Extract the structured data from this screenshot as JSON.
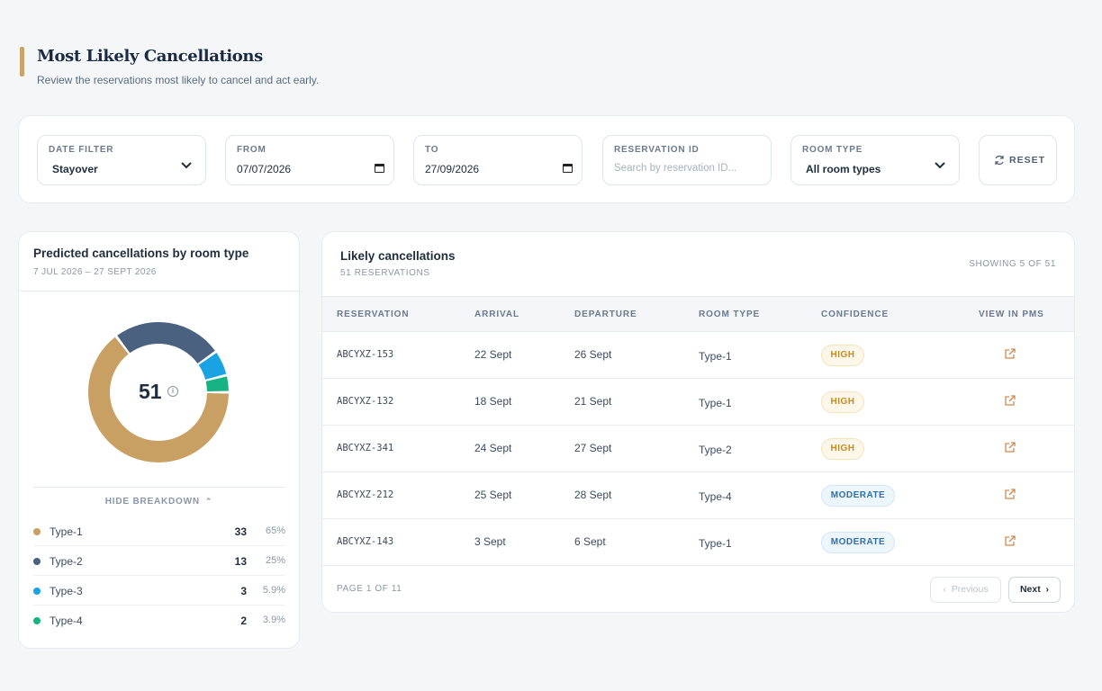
{
  "header": {
    "title": "Most Likely Cancellations",
    "subtitle": "Review the reservations most likely to cancel and act early.",
    "accent_color": "#c9a36a"
  },
  "filters": {
    "date_filter": {
      "label": "DATE FILTER",
      "value": "Stayover"
    },
    "from": {
      "label": "FROM",
      "value": "07/07/2026"
    },
    "to": {
      "label": "TO",
      "value": "27/09/2026"
    },
    "reservation_id": {
      "label": "RESERVATION ID",
      "placeholder": "Search by reservation ID..."
    },
    "room_type": {
      "label": "ROOM TYPE",
      "value": "All room types"
    },
    "reset_label": "RESET"
  },
  "breakdown": {
    "title": "Predicted cancellations by room type",
    "date_range": "7 JUL 2026 – 27 SEPT 2026",
    "total": "51",
    "toggle_label": "HIDE BREAKDOWN",
    "items": [
      {
        "name": "Type-1",
        "count": "33",
        "pct": "65%",
        "value": 33,
        "color": "#c9a063"
      },
      {
        "name": "Type-2",
        "count": "13",
        "pct": "25%",
        "value": 13,
        "color": "#4a6280"
      },
      {
        "name": "Type-3",
        "count": "3",
        "pct": "5.9%",
        "value": 3,
        "color": "#1aa3e3"
      },
      {
        "name": "Type-4",
        "count": "2",
        "pct": "3.9%",
        "value": 2,
        "color": "#17b383"
      }
    ]
  },
  "table": {
    "title": "Likely cancellations",
    "subtitle": "51 RESERVATIONS",
    "showing": "SHOWING 5 OF 51",
    "columns": [
      "RESERVATION",
      "ARRIVAL",
      "DEPARTURE",
      "ROOM TYPE",
      "CONFIDENCE",
      "VIEW IN PMS"
    ],
    "rows": [
      {
        "reservation": "ABCYXZ-153",
        "arrival": "22 Sept",
        "departure": "26 Sept",
        "room_type": "Type-1",
        "confidence": "HIGH"
      },
      {
        "reservation": "ABCYXZ-132",
        "arrival": "18 Sept",
        "departure": "21 Sept",
        "room_type": "Type-1",
        "confidence": "HIGH"
      },
      {
        "reservation": "ABCYXZ-341",
        "arrival": "24 Sept",
        "departure": "27 Sept",
        "room_type": "Type-2",
        "confidence": "HIGH"
      },
      {
        "reservation": "ABCYXZ-212",
        "arrival": "25 Sept",
        "departure": "28 Sept",
        "room_type": "Type-4",
        "confidence": "MODERATE"
      },
      {
        "reservation": "ABCYXZ-143",
        "arrival": "3 Sept",
        "departure": "6 Sept",
        "room_type": "Type-1",
        "confidence": "MODERATE"
      }
    ],
    "page_label": "PAGE 1 OF 11",
    "prev_label": "Previous",
    "next_label": "Next"
  }
}
